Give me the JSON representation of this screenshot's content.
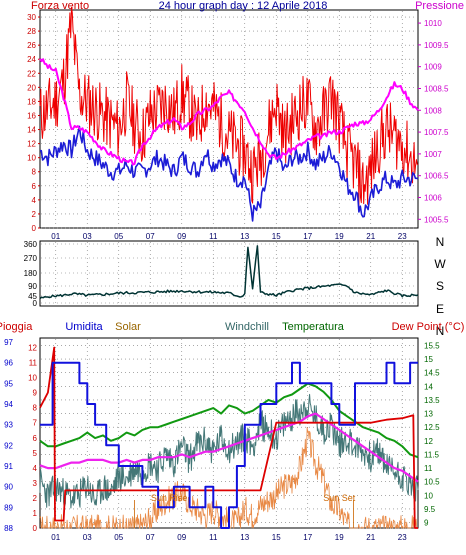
{
  "chart_data": [
    {
      "type": "line",
      "title": "24 hour graph day : 12 Aprile 2018",
      "left_axis_label": "Forza vento",
      "right_axis_label": "Pressione",
      "x_ticks": [
        "01",
        "03",
        "05",
        "07",
        "09",
        "11",
        "13",
        "15",
        "17",
        "19",
        "21",
        "23"
      ],
      "x_range": [
        0,
        24
      ],
      "y_left_ticks": [
        "0",
        "2",
        "4",
        "6",
        "8",
        "10",
        "12",
        "14",
        "16",
        "18",
        "20",
        "22",
        "24",
        "26",
        "28",
        "30"
      ],
      "y_left_range": [
        0,
        31
      ],
      "y_right_ticks": [
        "1005.5",
        "1006",
        "1006.5",
        "1007",
        "1007.5",
        "1008",
        "1008.5",
        "1009",
        "1009.5",
        "1010"
      ],
      "y_right_range": [
        1005.3,
        1010.3
      ],
      "grid": true,
      "colors": {
        "wind_speed": "#1c1cd6",
        "wind_gust": "#ee0000",
        "pressure": "#ff00ff",
        "left_axis": "#cc0000",
        "right_axis": "#cc00cc"
      },
      "series": [
        {
          "axis": "left",
          "x": [
            0,
            0.5,
            1,
            1.5,
            2,
            2.5,
            3,
            3.5,
            4,
            4.5,
            5,
            5.5,
            6,
            6.5,
            7,
            7.5,
            8,
            8.5,
            9,
            9.5,
            10,
            10.5,
            11,
            11.5,
            12,
            12.5,
            13,
            13.5,
            14,
            14.5,
            15,
            15.5,
            16,
            16.5,
            17,
            17.5,
            18,
            18.5,
            19,
            19.5,
            20,
            20.5,
            21,
            21.5,
            22,
            22.5,
            23,
            23.5,
            24
          ],
          "values": [
            11,
            10,
            11,
            12,
            11,
            14,
            11,
            10,
            9,
            8,
            8,
            9,
            8,
            8,
            9,
            10,
            9,
            8,
            10,
            9,
            8,
            11,
            9,
            10,
            9,
            7,
            7,
            2,
            3,
            8,
            11,
            8,
            10,
            10,
            11,
            9,
            10,
            11,
            9,
            6,
            5,
            2,
            4,
            6,
            7,
            6,
            7,
            7,
            7
          ]
        },
        {
          "axis": "left",
          "x": [
            0,
            0.5,
            1,
            1.5,
            2,
            2.5,
            3,
            3.5,
            4,
            4.5,
            5,
            5.5,
            6,
            6.5,
            7,
            7.5,
            8,
            8.5,
            9,
            9.5,
            10,
            10.5,
            11,
            11.5,
            12,
            12.5,
            13,
            13.5,
            14,
            14.5,
            15,
            15.5,
            16,
            16.5,
            17,
            17.5,
            18,
            18.5,
            19,
            19.5,
            20,
            20.5,
            21,
            21.5,
            22,
            22.5,
            23,
            23.5,
            24
          ],
          "values": [
            16,
            17,
            18,
            21,
            29,
            19,
            18,
            17,
            16,
            15,
            14,
            18,
            15,
            13,
            16,
            17,
            18,
            16,
            19,
            17,
            14,
            18,
            17,
            15,
            13,
            12,
            11,
            8,
            10,
            14,
            18,
            13,
            15,
            17,
            18,
            14,
            16,
            19,
            15,
            11,
            9,
            6,
            8,
            12,
            14,
            13,
            12,
            10,
            9
          ]
        },
        {
          "axis": "right",
          "x": [
            0,
            0.5,
            1,
            1.5,
            2,
            2.5,
            3,
            3.5,
            4,
            4.5,
            5,
            5.5,
            6,
            6.5,
            7,
            7.5,
            8,
            8.5,
            9,
            9.5,
            10,
            10.5,
            11,
            11.5,
            12,
            12.5,
            13,
            13.5,
            14,
            14.5,
            15,
            15.5,
            16,
            16.5,
            17,
            17.5,
            18,
            18.5,
            19,
            19.5,
            20,
            20.5,
            21,
            21.5,
            22,
            22.5,
            23,
            23.5,
            24
          ],
          "values": [
            1009.2,
            1009,
            1008.9,
            1008.3,
            1007.6,
            1007.6,
            1007.5,
            1007.3,
            1007.1,
            1007,
            1006.9,
            1006.8,
            1006.8,
            1007.2,
            1007.4,
            1007.6,
            1007.7,
            1007.8,
            1007.6,
            1007.7,
            1007.9,
            1008,
            1008.1,
            1008.3,
            1008.4,
            1008.2,
            1008,
            1007.6,
            1007.3,
            1007,
            1006.9,
            1007.0,
            1007.1,
            1007.2,
            1007.3,
            1007.4,
            1007.4,
            1007.5,
            1007.5,
            1007.6,
            1007.7,
            1007.7,
            1007.8,
            1008.0,
            1008.3,
            1008.6,
            1008.5,
            1008.2,
            1008.0
          ]
        }
      ]
    },
    {
      "type": "line",
      "title": "",
      "right_labels": [
        "N",
        "W",
        "S",
        "E",
        "N"
      ],
      "y_ticks": [
        "0",
        "45",
        "90",
        "180",
        "270",
        "360"
      ],
      "y_range": [
        0,
        360
      ],
      "x_range": [
        0,
        24
      ],
      "grid": true,
      "colors": {
        "direction": "#003333"
      },
      "series": [
        {
          "x": [
            0,
            0.5,
            1,
            1.5,
            2,
            2.5,
            3,
            3.5,
            4,
            5,
            6,
            7,
            8,
            9,
            10,
            11,
            12,
            12.8,
            13.0,
            13.2,
            13.5,
            13.8,
            14,
            15,
            16,
            17,
            18,
            19,
            19.5,
            20,
            21,
            22,
            23,
            24
          ],
          "values": [
            30,
            40,
            45,
            48,
            55,
            52,
            48,
            50,
            52,
            58,
            60,
            62,
            65,
            68,
            64,
            62,
            58,
            40,
            60,
            340,
            80,
            350,
            60,
            48,
            70,
            80,
            88,
            100,
            90,
            60,
            50,
            70,
            45,
            50
          ]
        }
      ]
    },
    {
      "type": "line",
      "title": "",
      "legend": [
        "Pioggia",
        "Umidita",
        "Solar",
        "Windchill",
        "Temperatura",
        "Dew Point (°C)"
      ],
      "legend_colors": [
        "#cc0000",
        "#0000cc",
        "#996600",
        "#336666",
        "#006600",
        "#cc0000"
      ],
      "annotations": [
        "Sun Rise",
        "Sun Set"
      ],
      "y_left_outer_ticks": [
        "88",
        "89",
        "90",
        "91",
        "92",
        "93",
        "94",
        "95",
        "96",
        "97"
      ],
      "y_left_outer_range": [
        88,
        97
      ],
      "y_left_inner_ticks": [
        "0",
        "1",
        "2",
        "3",
        "4",
        "5",
        "6",
        "7",
        "8",
        "9",
        "10",
        "11",
        "12"
      ],
      "y_left_inner_range": [
        0,
        12.5
      ],
      "y_right_ticks": [
        "9",
        "9.5",
        "10",
        "10.5",
        "11",
        "11.5",
        "12",
        "12.5",
        "13",
        "13.5",
        "14",
        "14.5",
        "15",
        "15.5"
      ],
      "y_right_range": [
        8.8,
        15.7
      ],
      "x_range": [
        0,
        24
      ],
      "grid": true,
      "series": [
        {
          "name": "Pioggia",
          "axis": "inner",
          "x": [
            0,
            0.5,
            0.9,
            0.95,
            1.0,
            1.5,
            1.6,
            6,
            8,
            12,
            14,
            15,
            15.5,
            20,
            21,
            22,
            23,
            23.7,
            23.8,
            24
          ],
          "values": [
            8,
            9,
            12,
            0.5,
            0.5,
            0.5,
            2.5,
            2.5,
            2.5,
            2.5,
            2.5,
            7,
            7,
            7,
            7,
            7.2,
            7.3,
            7.5,
            0,
            0
          ]
        },
        {
          "name": "Umidita",
          "axis": "outer",
          "x": [
            0,
            0.8,
            0.8,
            1.2,
            2.0,
            2.5,
            2.8,
            3.0,
            3.3,
            3.5,
            4.0,
            4.2,
            4.8,
            5.0,
            6.0,
            6.5,
            7.0,
            7.5,
            8.0,
            8.5,
            9.0,
            9.5,
            10.0,
            10.5,
            11.0,
            11.5,
            12.0,
            12.5,
            13.0,
            14.0,
            15.0,
            15.5,
            16.0,
            16.5,
            17.0,
            17.5,
            18.0,
            18.5,
            19.0,
            19.5,
            20.0,
            21.0,
            21.5,
            22.0,
            22.5,
            23.0,
            23.5,
            24.0
          ],
          "values": [
            93,
            93,
            96,
            96,
            96,
            95,
            95,
            94,
            94,
            93,
            93,
            92,
            92,
            91,
            91,
            90,
            90,
            89,
            89,
            90,
            90,
            89,
            89,
            90,
            89,
            88,
            89,
            91,
            93,
            94,
            95,
            95,
            96,
            95,
            95,
            95,
            95,
            94,
            93,
            93,
            95,
            95,
            95,
            96,
            95,
            95,
            96,
            96
          ]
        },
        {
          "name": "Solar",
          "axis": "inner",
          "x": [
            0,
            1,
            2,
            3,
            4,
            5,
            6,
            6.5,
            7,
            7.5,
            8,
            8.5,
            9,
            9.5,
            10,
            10.5,
            11,
            11.5,
            12,
            12.5,
            13,
            13.5,
            14,
            14.5,
            15,
            15.5,
            16,
            16.5,
            17,
            17.5,
            18,
            18.5,
            19,
            19.5,
            20,
            21,
            22,
            23,
            24
          ],
          "values": [
            0,
            0,
            0,
            0,
            0,
            0,
            0,
            0.2,
            0.6,
            1.2,
            1.8,
            2.1,
            2.4,
            1.6,
            1.2,
            0.8,
            1.2,
            0.8,
            0.5,
            0.3,
            1.3,
            0.8,
            1.5,
            1.9,
            2.2,
            2.8,
            3.0,
            4.0,
            6.0,
            4.3,
            3.2,
            1.6,
            1.2,
            0.2,
            0,
            0,
            0,
            0,
            0
          ]
        },
        {
          "name": "Windchill",
          "axis": "right",
          "x": [
            0,
            0.5,
            1,
            1.5,
            2,
            2.5,
            3,
            3.5,
            4,
            4.5,
            5,
            5.5,
            6,
            6.5,
            7,
            7.5,
            8,
            8.5,
            9,
            9.5,
            10,
            10.5,
            11,
            11.5,
            12,
            12.5,
            13,
            13.5,
            14,
            14.5,
            15,
            15.5,
            16,
            16.5,
            17,
            17.5,
            18,
            18.5,
            19,
            19.5,
            20,
            20.5,
            21,
            21.5,
            22,
            22.5,
            23,
            23.5,
            24
          ],
          "values": [
            10.5,
            10,
            10.3,
            10.1,
            9.9,
            10.0,
            10.4,
            9.8,
            10.3,
            10.1,
            10.7,
            10.6,
            11.0,
            10.9,
            11.2,
            11.0,
            11.5,
            11.2,
            11.8,
            11.3,
            11.9,
            12.0,
            11.6,
            12.1,
            11.7,
            11.9,
            12.2,
            11.8,
            12.6,
            12.4,
            12.1,
            12.6,
            12.9,
            13.1,
            13.3,
            12.8,
            12.4,
            12.6,
            11.9,
            12.1,
            11.8,
            11.6,
            11.4,
            11.6,
            11.1,
            10.9,
            10.7,
            10.4,
            10.2
          ]
        },
        {
          "name": "Temperatura",
          "axis": "right",
          "x": [
            0,
            0.5,
            1,
            1.5,
            2,
            2.5,
            3,
            3.5,
            4,
            4.5,
            5,
            5.5,
            6,
            6.5,
            7,
            7.5,
            8,
            8.5,
            9,
            9.5,
            10,
            10.5,
            11,
            11.5,
            12,
            12.5,
            13,
            13.5,
            14,
            14.5,
            15,
            15.5,
            16,
            16.5,
            17,
            17.5,
            18,
            18.5,
            19,
            19.5,
            20,
            20.5,
            21,
            21.5,
            22,
            22.5,
            23,
            23.5,
            24
          ],
          "values": [
            12.0,
            11.8,
            11.8,
            11.9,
            12.0,
            12.1,
            12.3,
            12.1,
            12.2,
            12.0,
            12.1,
            12.3,
            12.2,
            12.4,
            12.5,
            12.5,
            12.6,
            12.7,
            12.8,
            12.9,
            13.0,
            13.1,
            13.2,
            13.0,
            13.3,
            13.2,
            13.0,
            13.1,
            13.3,
            13.5,
            13.4,
            13.6,
            13.7,
            13.9,
            14.1,
            14.0,
            13.8,
            13.5,
            13.1,
            12.9,
            12.7,
            12.5,
            12.4,
            12.3,
            12.1,
            12.0,
            11.8,
            11.5,
            11.4
          ]
        },
        {
          "name": "Dew Point (°C)",
          "axis": "right",
          "x": [
            0,
            0.5,
            1,
            1.5,
            2,
            2.5,
            3,
            3.5,
            4,
            4.5,
            5,
            5.5,
            6,
            6.5,
            7,
            7.5,
            8,
            8.5,
            9,
            9.5,
            10,
            10.5,
            11,
            11.5,
            12,
            12.5,
            13,
            13.5,
            14,
            14.5,
            15,
            15.5,
            16,
            16.5,
            17,
            17.5,
            18,
            18.5,
            19,
            19.5,
            20,
            20.5,
            21,
            21.5,
            22,
            22.5,
            23,
            23.5,
            24
          ],
          "values": [
            11.1,
            11.0,
            11.0,
            11.1,
            11.2,
            11.2,
            11.3,
            11.3,
            11.3,
            11.2,
            11.2,
            11.3,
            11.2,
            11.3,
            11.3,
            11.4,
            11.4,
            11.4,
            11.5,
            11.4,
            11.5,
            11.6,
            11.6,
            11.7,
            11.8,
            11.9,
            12.0,
            12.1,
            12.2,
            12.3,
            12.4,
            12.5,
            12.6,
            12.7,
            12.9,
            13.0,
            12.8,
            12.6,
            12.4,
            12.2,
            12.0,
            11.8,
            11.6,
            11.4,
            11.2,
            11.0,
            10.9,
            10.7,
            10.5
          ]
        }
      ]
    }
  ]
}
